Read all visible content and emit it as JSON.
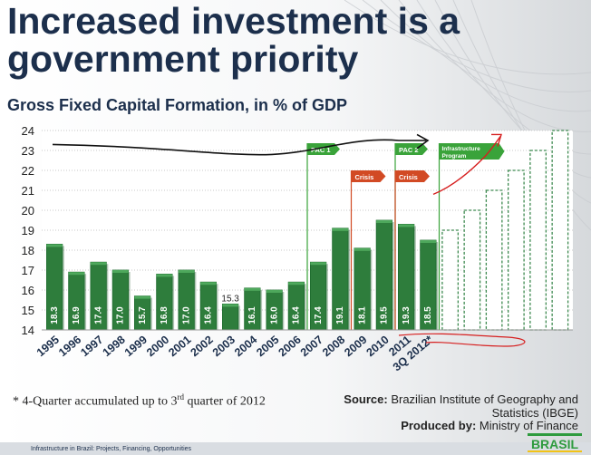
{
  "title": "Increased investment is a government priority",
  "subtitle": "Gross Fixed Capital Formation, in % of GDP",
  "chart_data": {
    "type": "bar",
    "categories": [
      "1995",
      "1996",
      "1997",
      "1998",
      "1999",
      "2000",
      "2001",
      "2002",
      "2003",
      "2004",
      "2005",
      "2006",
      "2007",
      "2008",
      "2009",
      "2010",
      "2011",
      "3Q 2012*"
    ],
    "values": [
      18.3,
      16.9,
      17.4,
      17.0,
      15.7,
      16.8,
      17.0,
      16.4,
      15.3,
      16.1,
      16.0,
      16.4,
      17.4,
      19.1,
      18.1,
      19.5,
      19.3,
      18.5
    ],
    "value_labels": [
      "18.3",
      "16.9",
      "17.4",
      "17.0",
      "15.7",
      "16.8",
      "17.0",
      "16.4",
      "15.3",
      "16.1",
      "16.0",
      "16.4",
      "17.4",
      "19.1",
      "18.1",
      "19.5",
      "19.3",
      "18.5"
    ],
    "projection_values": [
      19,
      20,
      21,
      22,
      23,
      24
    ],
    "ylim": [
      14,
      24
    ],
    "yticks": [
      "14",
      "15",
      "16",
      "17",
      "18",
      "19",
      "20",
      "21",
      "22",
      "23",
      "24"
    ],
    "grid": true,
    "bar_color": "#2e7d3c",
    "projection_color": "#3e8a50",
    "annotations": [
      {
        "label": "PAC 1",
        "after_category": "2006",
        "color": "#3aa33a"
      },
      {
        "label": "Crisis",
        "after_category": "2008",
        "color": "#d24a24"
      },
      {
        "label": "PAC 2",
        "after_category": "2010",
        "color": "#3aa33a"
      },
      {
        "label": "Crisis",
        "after_category": "2010",
        "color": "#d24a24"
      },
      {
        "label": "Infrastructure Program",
        "after_category": "3Q 2012*",
        "color": "#3aa33a"
      }
    ]
  },
  "footnote": {
    "text_before": "* 4-Quarter accumulated up to 3",
    "sup": "rd",
    "text_after": " quarter of 2012"
  },
  "source": {
    "label": "Source:",
    "text": "Brazilian Institute of Geography and Statistics (IBGE)"
  },
  "produced": {
    "label": "Produced by:",
    "text": "Ministry of Finance"
  },
  "footer": {
    "text": "Infrastructure in Brazil: Projects, Financing, Opportunities"
  },
  "logo": {
    "text": "BRASIL"
  }
}
